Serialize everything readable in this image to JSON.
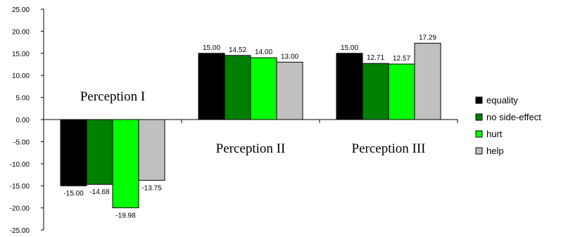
{
  "chart_data": {
    "type": "bar",
    "categories": [
      "Perception I",
      "Perception II",
      "Perception III"
    ],
    "series": [
      {
        "name": "equality",
        "color": "#000000",
        "values": [
          -15.0,
          15.0,
          15.0
        ]
      },
      {
        "name": "no side-effect",
        "color": "#008000",
        "values": [
          -14.68,
          14.52,
          12.71
        ]
      },
      {
        "name": "hurt",
        "color": "#00ff00",
        "values": [
          -19.98,
          14.0,
          12.57
        ]
      },
      {
        "name": "help",
        "color": "#c0c0c0",
        "values": [
          -13.75,
          13.0,
          17.29
        ]
      }
    ],
    "data_labels": [
      [
        "-15.00",
        "15.00",
        "15.00"
      ],
      [
        "-14.68",
        "14.52",
        "12.71"
      ],
      [
        "-19.98",
        "14.00",
        "12.57"
      ],
      [
        "-13.75",
        "13.00",
        "17.29"
      ]
    ],
    "y_ticks": [
      "25.00",
      "20.00",
      "15.00",
      "10.00",
      "5.00",
      "0.00",
      "-5.00",
      "-10.00",
      "-15.00",
      "-20.00",
      "-25.00"
    ],
    "ylim": [
      -25,
      25
    ],
    "grid": false,
    "legend": "right",
    "title": "",
    "xlabel": "",
    "ylabel": ""
  }
}
